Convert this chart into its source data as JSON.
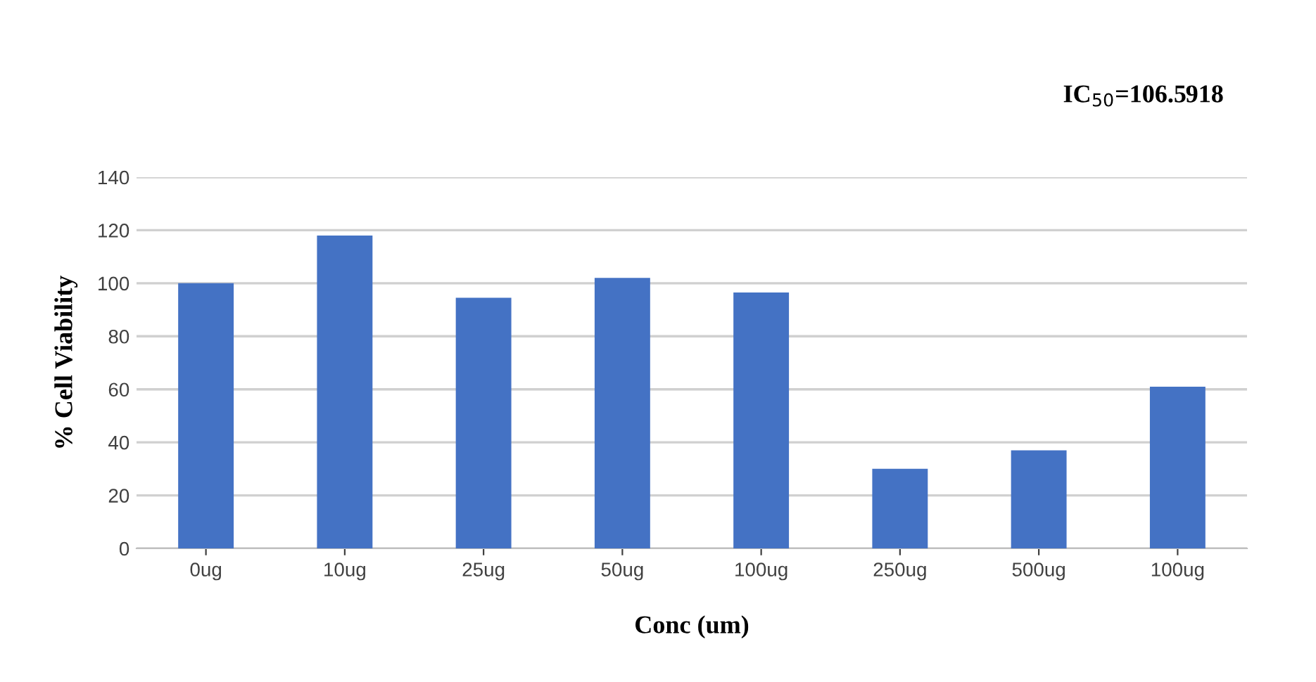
{
  "chart_data": {
    "type": "bar",
    "xlabel": "Conc (um)",
    "ylabel": "% Cell Viability",
    "annotations": [
      "IC$_{50}$=106.5918"
    ],
    "categories": [
      "0ug",
      "10ug",
      "25ug",
      "50ug",
      "100ug",
      "250ug",
      "500ug",
      "100ug"
    ],
    "values": [
      100,
      118,
      94.5,
      102,
      96.5,
      30,
      37,
      61
    ],
    "color": "#4472c4",
    "ylim": [
      0,
      140
    ],
    "yticks": [
      0,
      20,
      40,
      60,
      80,
      100,
      120,
      140
    ],
    "grid": "y"
  }
}
